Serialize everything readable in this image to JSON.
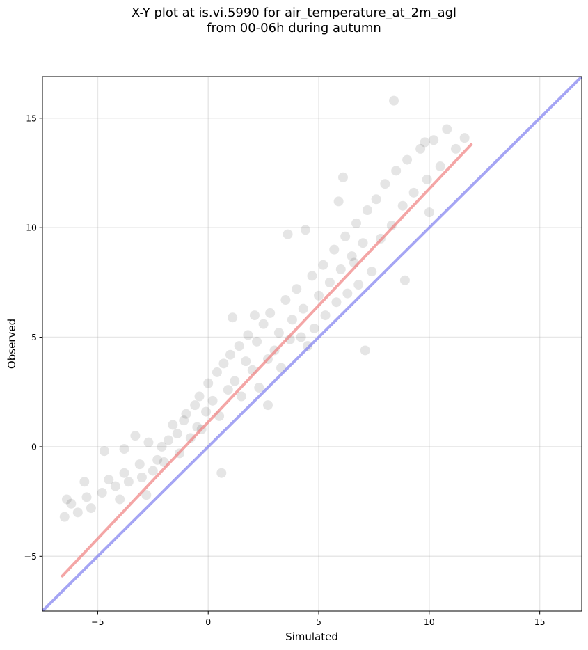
{
  "chart_data": {
    "type": "scatter",
    "title": "X-Y plot at is.vi.5990 for air_temperature_at_2m_agl",
    "subtitle": "from 00-06h during autumn",
    "xlabel": "Simulated",
    "ylabel": "Observed",
    "xlim": [
      -7.5,
      16.9
    ],
    "ylim": [
      -7.5,
      16.9
    ],
    "xticks": [
      -5,
      0,
      5,
      10,
      15
    ],
    "yticks": [
      -5,
      0,
      5,
      10,
      15
    ],
    "xtick_labels": [
      "−5",
      "0",
      "5",
      "10",
      "15"
    ],
    "ytick_labels": [
      "−5",
      "0",
      "5",
      "10",
      "15"
    ],
    "grid": true,
    "point_color": "#000000",
    "point_alpha": 0.1,
    "series": [
      {
        "kind": "points",
        "x": [
          -6.5,
          -6.4,
          -6.2,
          -5.9,
          -5.6,
          -5.5,
          -5.3,
          -4.8,
          -4.7,
          -4.5,
          -4.2,
          -4.0,
          -3.8,
          -3.6,
          -3.3,
          -3.1,
          -3.0,
          -2.8,
          -2.7,
          -2.5,
          -2.3,
          -2.1,
          -2.0,
          -1.8,
          -1.6,
          -1.4,
          -1.3,
          -1.1,
          -1.0,
          -0.8,
          -0.6,
          -0.4,
          -0.3,
          -0.1,
          0.0,
          0.2,
          0.4,
          0.5,
          0.7,
          0.9,
          1.0,
          1.2,
          1.4,
          1.5,
          1.7,
          1.8,
          2.0,
          2.2,
          2.3,
          2.5,
          2.7,
          2.8,
          3.0,
          3.2,
          3.3,
          3.5,
          3.7,
          3.8,
          4.0,
          4.2,
          4.3,
          4.5,
          4.7,
          4.8,
          5.0,
          5.2,
          5.3,
          5.5,
          5.7,
          5.8,
          6.0,
          6.2,
          6.3,
          6.5,
          6.7,
          6.8,
          7.0,
          7.2,
          7.4,
          7.6,
          7.8,
          8.0,
          8.3,
          8.5,
          8.8,
          9.0,
          9.3,
          9.6,
          9.9,
          10.2,
          10.5,
          10.8,
          11.2,
          11.6,
          8.4,
          6.1,
          9.8,
          3.6,
          2.7,
          0.6,
          -3.8,
          5.9,
          4.4,
          1.1,
          7.1,
          10.0,
          -0.5,
          2.1,
          6.6,
          8.9
        ],
        "y": [
          -3.2,
          -2.4,
          -2.6,
          -3.0,
          -1.6,
          -2.3,
          -2.8,
          -2.1,
          -0.2,
          -1.5,
          -1.8,
          -2.4,
          -1.2,
          -1.6,
          0.5,
          -0.8,
          -1.4,
          -2.2,
          0.2,
          -1.1,
          -0.6,
          0.0,
          -0.7,
          0.3,
          1.0,
          0.6,
          -0.3,
          1.2,
          1.5,
          0.4,
          1.9,
          2.3,
          0.8,
          1.6,
          2.9,
          2.1,
          3.4,
          1.4,
          3.8,
          2.6,
          4.2,
          3.0,
          4.6,
          2.3,
          3.9,
          5.1,
          3.5,
          4.8,
          2.7,
          5.6,
          4.0,
          6.1,
          4.4,
          5.2,
          3.6,
          6.7,
          4.9,
          5.8,
          7.2,
          5.0,
          6.3,
          4.6,
          7.8,
          5.4,
          6.9,
          8.3,
          6.0,
          7.5,
          9.0,
          6.6,
          8.1,
          9.6,
          7.0,
          8.7,
          10.2,
          7.4,
          9.3,
          10.8,
          8.0,
          11.3,
          9.5,
          12.0,
          10.1,
          12.6,
          11.0,
          13.1,
          11.6,
          13.6,
          12.2,
          14.0,
          12.8,
          14.5,
          13.6,
          14.1,
          15.8,
          12.3,
          13.9,
          9.7,
          1.9,
          -1.2,
          -0.1,
          11.2,
          9.9,
          5.9,
          4.4,
          10.7,
          0.9,
          6.0,
          8.4,
          7.6
        ]
      },
      {
        "kind": "fit_line",
        "name": "",
        "color": "#f08080",
        "x": [
          -6.6,
          11.9
        ],
        "y": [
          -5.9,
          13.8
        ]
      },
      {
        "kind": "one_to_one",
        "name": "",
        "color": "#7f7fef",
        "x": [
          -7.5,
          16.9
        ],
        "y": [
          -7.5,
          16.9
        ]
      }
    ]
  }
}
